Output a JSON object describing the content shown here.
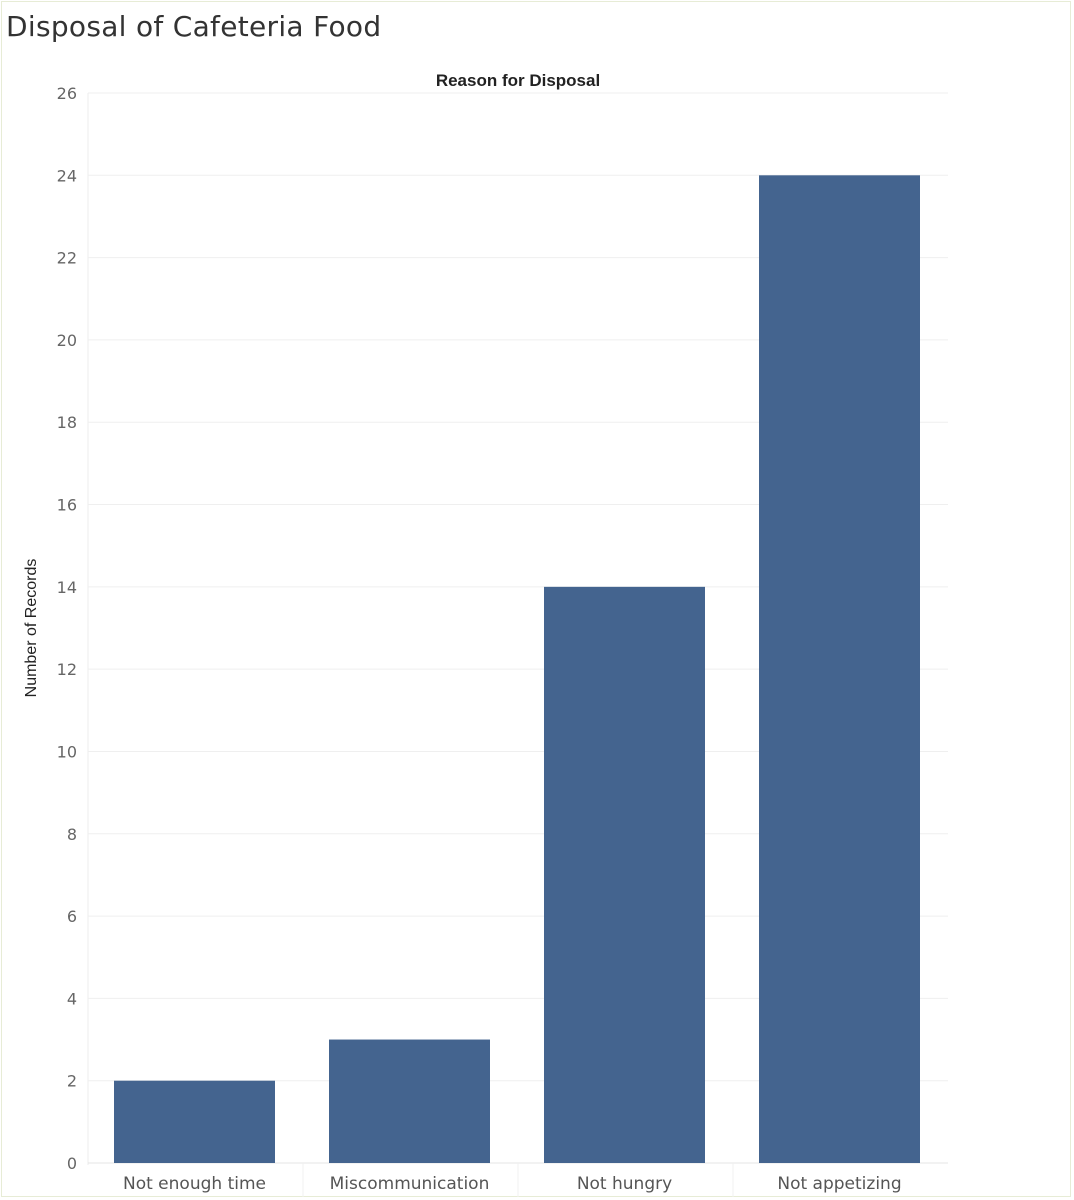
{
  "chart_data": {
    "type": "bar",
    "title": "Disposal of Cafeteria Food",
    "column_header": "Reason for Disposal",
    "xlabel": "",
    "ylabel": "Number of Records",
    "categories": [
      "Not enough time",
      "Miscommunication",
      "Not hungry",
      "Not appetizing"
    ],
    "values": [
      2,
      3,
      14,
      24
    ],
    "ylim": [
      0,
      26
    ],
    "yticks": [
      0,
      2,
      4,
      6,
      8,
      10,
      12,
      14,
      16,
      18,
      20,
      22,
      24,
      26
    ],
    "grid": true,
    "legend": "none",
    "bar_color": "#44648f"
  }
}
